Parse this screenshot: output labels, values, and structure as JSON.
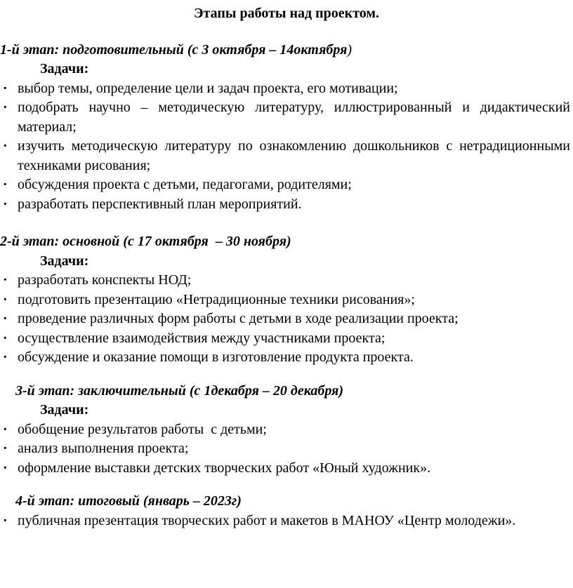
{
  "document": {
    "title": "Этапы работы над проектом.",
    "bullet_char": "·",
    "text_color": "#000000",
    "background_color": "#ffffff",
    "stages": [
      {
        "heading": "1-й этап: подготовительный (с 3 октября – 14октября",
        "heading_tail": ")",
        "tasks_label": "Задачи:",
        "items": [
          "выбор темы, определение цели и задач проекта, его мотивации;",
          "подобрать научно – методическую литературу, иллюстрированный и дидактический материал;",
          "изучить методическую литературу по ознакомлению дошкольников с нетрадиционными техниками рисования;",
          "обсуждения проекта с детьми, педагогами, родителями;",
          "разработать перспективный план мероприятий."
        ]
      },
      {
        "heading": "2-й этап: основной (с 17 октября  – 30 ноября)",
        "heading_tail": "",
        "tasks_label": "Задачи:",
        "items": [
          "разработать конспекты НОД;",
          "подготовить презентацию «Нетрадиционные техники рисования»;",
          "проведение различных форм работы с детьми в ходе реализации проекта;",
          "осуществление взаимодействия между участниками проекта;",
          "обсуждение и оказание помощи в изготовление продукта проекта."
        ]
      },
      {
        "heading": "3-й этап: заключительный (с 1декабря – 20 декабря)",
        "heading_tail": "",
        "tasks_label": "Задачи:",
        "items": [
          "обобщение результатов работы  с детьми;",
          "анализ выполнения проекта;",
          "оформление выставки детских творческих работ «Юный художник»."
        ]
      },
      {
        "heading": "4-й этап: итоговый (январь – 2023г)",
        "heading_tail": "",
        "items": [
          "публичная презентация творческих работ и макетов в МАНОУ «Центр молодежи»."
        ]
      }
    ]
  }
}
